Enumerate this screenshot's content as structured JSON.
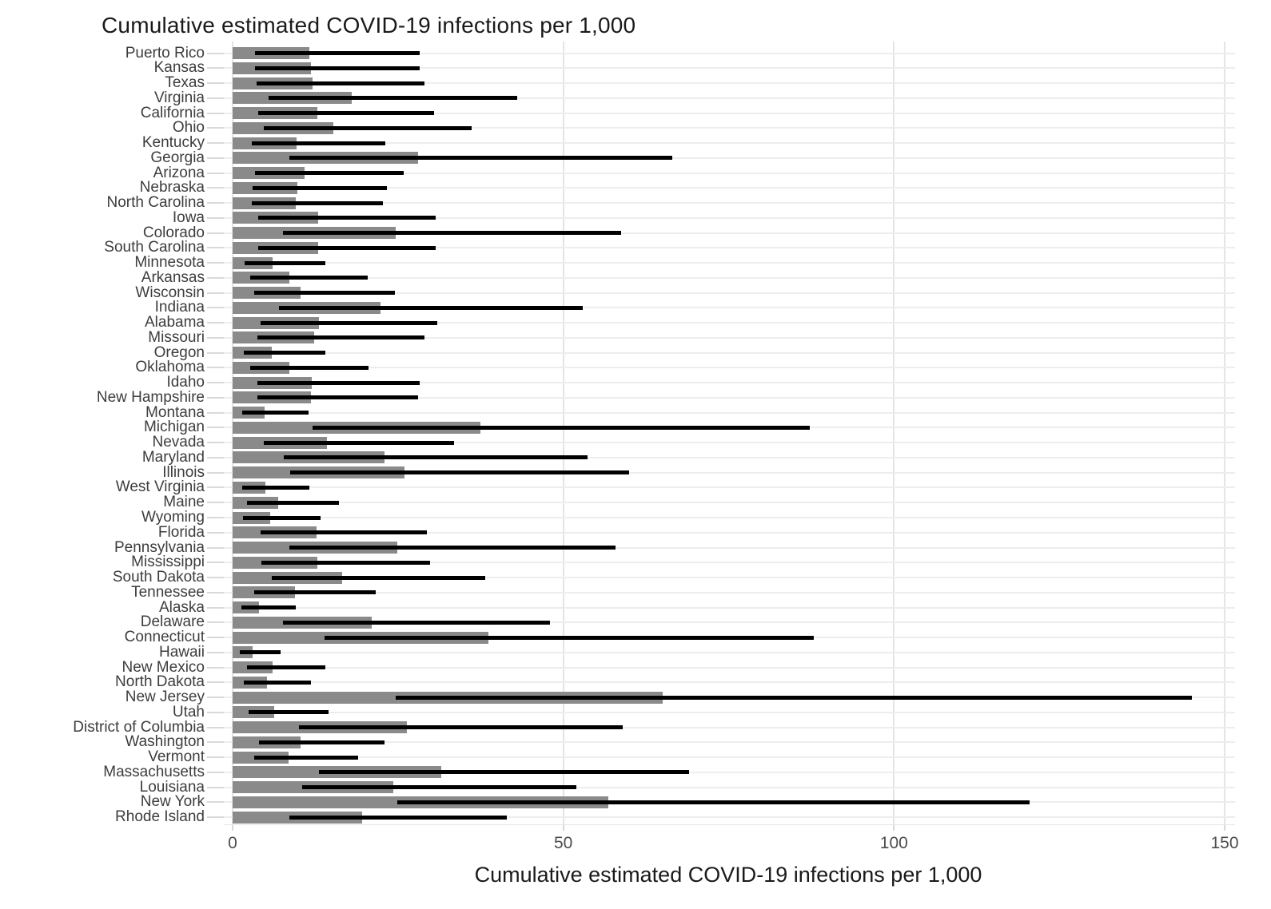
{
  "title": "Cumulative estimated COVID-19 infections per 1,000",
  "colors": {
    "bar": "#8a8a8a",
    "whisker": "#000000",
    "vertical_gridline": "#e4e4e4",
    "horizontal_gridline": "#ededed",
    "tick": "#d9d9d9",
    "state_label": "#3d3d3d",
    "tick_label": "#4d4d4d",
    "title": "#1a1a1a",
    "background": "#ffffff"
  },
  "chart_data": {
    "type": "bar",
    "orientation": "horizontal",
    "title": "Cumulative estimated COVID-19 infections per 1,000",
    "xlabel": "Cumulative estimated COVID-19 infections per 1,000",
    "ylabel": "",
    "xlim": [
      0,
      150
    ],
    "x_ticks": [
      0,
      50,
      100,
      150
    ],
    "grid": true,
    "legend": false,
    "bar_note": "gray bar = point estimate; black horizontal line = uncertainty interval (low-high)",
    "states": [
      {
        "name": "Puerto Rico",
        "estimate": 11.6,
        "ci_low": 3.4,
        "ci_high": 28.3
      },
      {
        "name": "Kansas",
        "estimate": 11.8,
        "ci_low": 3.4,
        "ci_high": 28.3
      },
      {
        "name": "Texas",
        "estimate": 12.1,
        "ci_low": 3.6,
        "ci_high": 29.0
      },
      {
        "name": "Virginia",
        "estimate": 18.0,
        "ci_low": 5.4,
        "ci_high": 43.0
      },
      {
        "name": "California",
        "estimate": 12.8,
        "ci_low": 3.9,
        "ci_high": 30.4
      },
      {
        "name": "Ohio",
        "estimate": 15.2,
        "ci_low": 4.7,
        "ci_high": 36.2
      },
      {
        "name": "Kentucky",
        "estimate": 9.7,
        "ci_low": 2.9,
        "ci_high": 23.1
      },
      {
        "name": "Georgia",
        "estimate": 28.0,
        "ci_low": 8.6,
        "ci_high": 66.5
      },
      {
        "name": "Arizona",
        "estimate": 10.9,
        "ci_low": 3.4,
        "ci_high": 25.9
      },
      {
        "name": "Nebraska",
        "estimate": 9.8,
        "ci_low": 3.0,
        "ci_high": 23.3
      },
      {
        "name": "North Carolina",
        "estimate": 9.5,
        "ci_low": 2.9,
        "ci_high": 22.7
      },
      {
        "name": "Iowa",
        "estimate": 12.9,
        "ci_low": 3.9,
        "ci_high": 30.7
      },
      {
        "name": "Colorado",
        "estimate": 24.7,
        "ci_low": 7.6,
        "ci_high": 58.7
      },
      {
        "name": "South Carolina",
        "estimate": 12.9,
        "ci_low": 3.9,
        "ci_high": 30.7
      },
      {
        "name": "Minnesota",
        "estimate": 6.0,
        "ci_low": 1.8,
        "ci_high": 14.0
      },
      {
        "name": "Arkansas",
        "estimate": 8.6,
        "ci_low": 2.7,
        "ci_high": 20.4
      },
      {
        "name": "Wisconsin",
        "estimate": 10.3,
        "ci_low": 3.3,
        "ci_high": 24.5
      },
      {
        "name": "Indiana",
        "estimate": 22.4,
        "ci_low": 7.0,
        "ci_high": 52.9
      },
      {
        "name": "Alabama",
        "estimate": 13.1,
        "ci_low": 4.2,
        "ci_high": 31.0
      },
      {
        "name": "Missouri",
        "estimate": 12.3,
        "ci_low": 3.8,
        "ci_high": 29.0
      },
      {
        "name": "Oregon",
        "estimate": 5.9,
        "ci_low": 1.7,
        "ci_high": 14.0
      },
      {
        "name": "Oklahoma",
        "estimate": 8.6,
        "ci_low": 2.7,
        "ci_high": 20.5
      },
      {
        "name": "Idaho",
        "estimate": 12.0,
        "ci_low": 3.8,
        "ci_high": 28.3
      },
      {
        "name": "New Hampshire",
        "estimate": 11.9,
        "ci_low": 3.8,
        "ci_high": 28.0
      },
      {
        "name": "Montana",
        "estimate": 4.8,
        "ci_low": 1.4,
        "ci_high": 11.5
      },
      {
        "name": "Michigan",
        "estimate": 37.5,
        "ci_low": 12.1,
        "ci_high": 87.3
      },
      {
        "name": "Nevada",
        "estimate": 14.3,
        "ci_low": 4.7,
        "ci_high": 33.5
      },
      {
        "name": "Maryland",
        "estimate": 23.0,
        "ci_low": 7.7,
        "ci_high": 53.7
      },
      {
        "name": "Illinois",
        "estimate": 26.0,
        "ci_low": 8.7,
        "ci_high": 60.0
      },
      {
        "name": "West Virginia",
        "estimate": 4.9,
        "ci_low": 1.4,
        "ci_high": 11.6
      },
      {
        "name": "Maine",
        "estimate": 6.9,
        "ci_low": 2.2,
        "ci_high": 16.1
      },
      {
        "name": "Wyoming",
        "estimate": 5.7,
        "ci_low": 1.6,
        "ci_high": 13.3
      },
      {
        "name": "Florida",
        "estimate": 12.7,
        "ci_low": 4.2,
        "ci_high": 29.4
      },
      {
        "name": "Pennsylvania",
        "estimate": 24.9,
        "ci_low": 8.6,
        "ci_high": 57.9
      },
      {
        "name": "Mississippi",
        "estimate": 12.8,
        "ci_low": 4.4,
        "ci_high": 29.9
      },
      {
        "name": "South Dakota",
        "estimate": 16.5,
        "ci_low": 5.9,
        "ci_high": 38.2
      },
      {
        "name": "Tennessee",
        "estimate": 9.4,
        "ci_low": 3.3,
        "ci_high": 21.6
      },
      {
        "name": "Alaska",
        "estimate": 4.0,
        "ci_low": 1.3,
        "ci_high": 9.5
      },
      {
        "name": "Delaware",
        "estimate": 21.0,
        "ci_low": 7.6,
        "ci_high": 48.0
      },
      {
        "name": "Connecticut",
        "estimate": 38.7,
        "ci_low": 13.9,
        "ci_high": 87.9
      },
      {
        "name": "Hawaii",
        "estimate": 3.0,
        "ci_low": 1.1,
        "ci_high": 7.2
      },
      {
        "name": "New Mexico",
        "estimate": 6.1,
        "ci_low": 2.2,
        "ci_high": 14.0
      },
      {
        "name": "North Dakota",
        "estimate": 5.2,
        "ci_low": 1.7,
        "ci_high": 11.9
      },
      {
        "name": "New Jersey",
        "estimate": 65.0,
        "ci_low": 24.6,
        "ci_high": 145.0
      },
      {
        "name": "Utah",
        "estimate": 6.3,
        "ci_low": 2.4,
        "ci_high": 14.5
      },
      {
        "name": "District of Columbia",
        "estimate": 26.4,
        "ci_low": 10.0,
        "ci_high": 59.0
      },
      {
        "name": "Washington",
        "estimate": 10.3,
        "ci_low": 4.0,
        "ci_high": 23.0
      },
      {
        "name": "Vermont",
        "estimate": 8.5,
        "ci_low": 3.3,
        "ci_high": 19.0
      },
      {
        "name": "Massachusetts",
        "estimate": 31.6,
        "ci_low": 13.0,
        "ci_high": 69.0
      },
      {
        "name": "Louisiana",
        "estimate": 24.3,
        "ci_low": 10.5,
        "ci_high": 52.0
      },
      {
        "name": "New York",
        "estimate": 56.8,
        "ci_low": 24.9,
        "ci_high": 120.5
      },
      {
        "name": "Rhode Island",
        "estimate": 19.6,
        "ci_low": 8.6,
        "ci_high": 41.5
      }
    ]
  }
}
